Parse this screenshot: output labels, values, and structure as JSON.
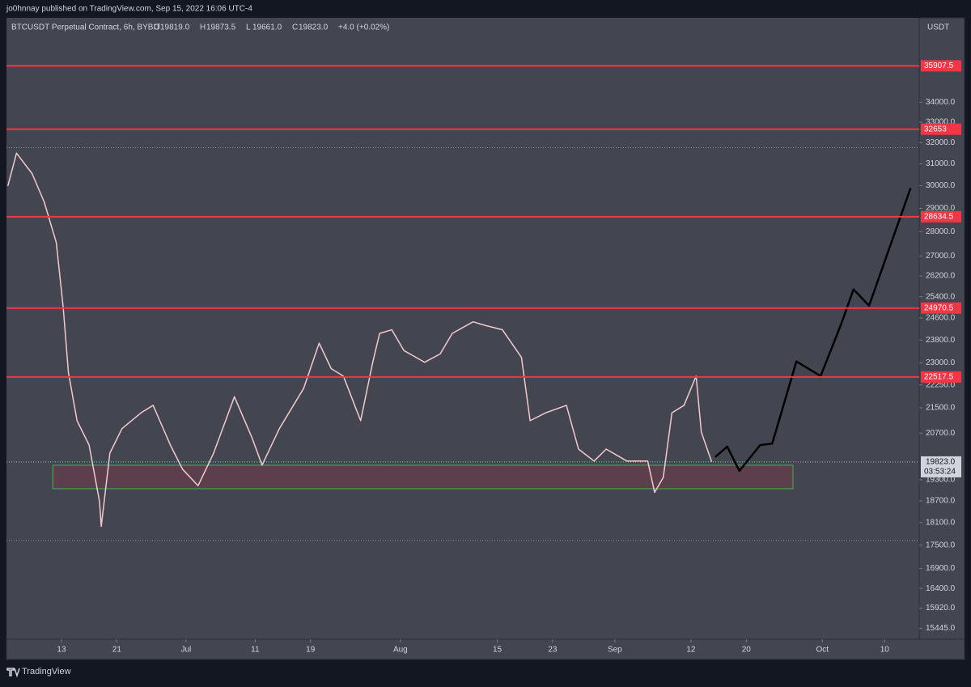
{
  "header": "jo0hnnay published on TradingView.com, Sep 15, 2022 16:06 UTC-4",
  "footer": "TradingView",
  "chart_data": {
    "type": "line",
    "title": "BTCUSDT Perpetual Contract, 6h, BYBIT",
    "ohlc": [
      {
        "label": "O",
        "value": "19819.0"
      },
      {
        "label": "H",
        "value": "19873.5"
      },
      {
        "label": "L",
        "value": "19661.0"
      },
      {
        "label": "C",
        "value": "19823.0"
      }
    ],
    "change": "+4.0 (+0.02%)",
    "currency": "USDT",
    "log_scale": true,
    "xlim": [
      156.05,
      288.0
    ],
    "ylim": [
      15195,
      38590
    ],
    "xticks": [
      {
        "value": 164,
        "label": "13"
      },
      {
        "value": 172,
        "label": "21"
      },
      {
        "value": 182,
        "label": "Jul"
      },
      {
        "value": 192,
        "label": "11"
      },
      {
        "value": 200,
        "label": "19"
      },
      {
        "value": 213,
        "label": "Aug"
      },
      {
        "value": 227,
        "label": "15"
      },
      {
        "value": 235,
        "label": "23"
      },
      {
        "value": 244,
        "label": "Sep"
      },
      {
        "value": 255,
        "label": "12"
      },
      {
        "value": 263,
        "label": "20"
      },
      {
        "value": 274,
        "label": "Oct"
      },
      {
        "value": 283,
        "label": "10"
      }
    ],
    "yticks": [
      {
        "value": 34000,
        "label": "34000.0"
      },
      {
        "value": 33000,
        "label": "33000.0"
      },
      {
        "value": 32000,
        "label": "32000.0"
      },
      {
        "value": 31000,
        "label": "31000.0"
      },
      {
        "value": 30000,
        "label": "30000.0"
      },
      {
        "value": 29000,
        "label": "29000.0"
      },
      {
        "value": 28000,
        "label": "28000.0"
      },
      {
        "value": 27000,
        "label": "27000.0"
      },
      {
        "value": 26200,
        "label": "26200.0"
      },
      {
        "value": 25400,
        "label": "25400.0"
      },
      {
        "value": 24600,
        "label": "24600.0"
      },
      {
        "value": 23800,
        "label": "23800.0"
      },
      {
        "value": 23000,
        "label": "23000.0"
      },
      {
        "value": 22250,
        "label": "22250.0"
      },
      {
        "value": 21500,
        "label": "21500.0"
      },
      {
        "value": 20700,
        "label": "20700.0"
      },
      {
        "value": 19300,
        "label": "19300.0"
      },
      {
        "value": 18700,
        "label": "18700.0"
      },
      {
        "value": 18100,
        "label": "18100.0"
      },
      {
        "value": 17500,
        "label": "17500.0"
      },
      {
        "value": 16900,
        "label": "16900.0"
      },
      {
        "value": 16400,
        "label": "16400.0"
      },
      {
        "value": 15920,
        "label": "15920.0"
      },
      {
        "value": 15445,
        "label": "15445.0"
      }
    ],
    "levels": {
      "color": "#f23645",
      "values": [
        35907.5,
        32653.0,
        28634.5,
        24970.5,
        22517.5
      ]
    },
    "range_lines": [
      31760,
      17620
    ],
    "zone": {
      "x": [
        162.75,
        269.75
      ],
      "y": [
        19044,
        19727
      ],
      "color": "#5c3f4d",
      "border": "#4caf50"
    },
    "last_price": {
      "value": 19823.0,
      "label": "19823.0",
      "countdown": "03:53:24"
    },
    "series": [
      {
        "name": "price",
        "color": "#f3c9cc",
        "x": [
          156.25,
          157.5,
          159.75,
          161.5,
          163.25,
          164.25,
          165,
          166.25,
          168,
          169.5,
          169.75,
          171,
          172.75,
          175.5,
          177.25,
          179.75,
          181.5,
          183.75,
          186,
          189,
          191.5,
          193,
          195.5,
          199,
          201.25,
          203,
          204.75,
          207.25,
          209,
          210,
          211.75,
          213.5,
          216.5,
          218.75,
          220.5,
          223.5,
          225.25,
          227.75,
          230.5,
          231.75,
          234,
          237,
          238.75,
          241,
          242.75,
          245.75,
          248.75,
          249.75,
          251,
          252.25,
          254,
          255.75,
          256.5,
          258
        ],
        "values": [
          29990,
          31500,
          30550,
          29280,
          27550,
          25000,
          22680,
          21090,
          20330,
          18680,
          18000,
          20090,
          20840,
          21340,
          21580,
          20330,
          19610,
          19130,
          20090,
          21860,
          20580,
          19730,
          20840,
          22130,
          23690,
          22800,
          22550,
          21090,
          23020,
          24040,
          24170,
          23430,
          23020,
          23310,
          24040,
          24460,
          24330,
          24170,
          23190,
          21090,
          21340,
          21580,
          20210,
          19850,
          20210,
          19850,
          19850,
          18940,
          19370,
          21340,
          21580,
          22550,
          20730,
          19823
        ]
      },
      {
        "name": "projection",
        "color": "#000000",
        "x": [
          258.5,
          260.25,
          262,
          265,
          266.75,
          270.25,
          273.75,
          276.75,
          278.5,
          280.75,
          286.75
        ],
        "values": [
          19970,
          20285,
          19560,
          20330,
          20380,
          23050,
          22550,
          24400,
          25680,
          25060,
          29890
        ]
      }
    ]
  }
}
